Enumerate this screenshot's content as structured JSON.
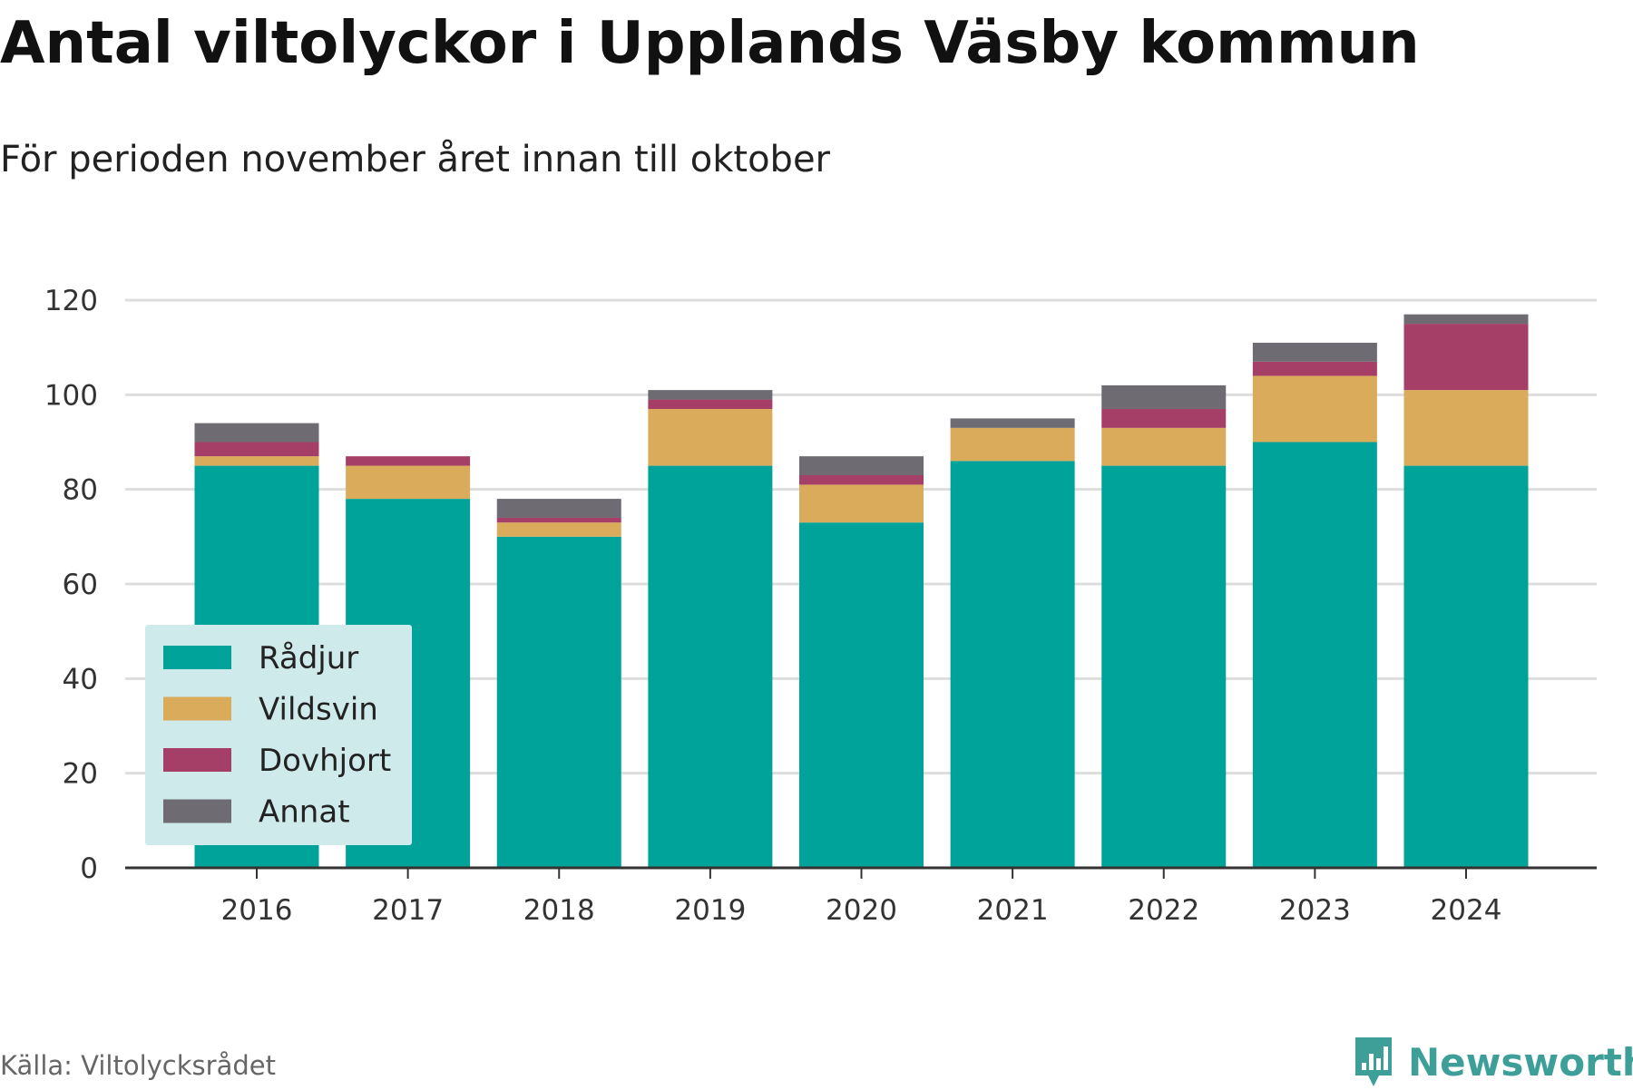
{
  "title": "Antal viltolyckor i Upplands Väsby kommun",
  "subtitle": "För perioden november året innan till oktober",
  "source": "Källa: Viltolycksrådet",
  "brand": {
    "name": "Newsworthy",
    "icon": "newsworthy-logo-icon",
    "color": "#3e9f98"
  },
  "colors": {
    "grid": "#dddddd",
    "axis": "#333333",
    "legend_bg": "#cfeaea"
  },
  "chart_data": {
    "type": "bar",
    "stacked": true,
    "categories": [
      "2016",
      "2017",
      "2018",
      "2019",
      "2020",
      "2021",
      "2022",
      "2023",
      "2024"
    ],
    "series": [
      {
        "name": "Rådjur",
        "color": "#00a39a",
        "values": [
          85,
          78,
          70,
          85,
          73,
          86,
          85,
          90,
          85
        ]
      },
      {
        "name": "Vildsvin",
        "color": "#d9ab5a",
        "values": [
          2,
          7,
          3,
          12,
          8,
          7,
          8,
          14,
          16
        ]
      },
      {
        "name": "Dovhjort",
        "color": "#a53f67",
        "values": [
          3,
          2,
          1,
          2,
          2,
          0,
          4,
          3,
          14
        ]
      },
      {
        "name": "Annat",
        "color": "#6e6c72",
        "values": [
          4,
          0,
          4,
          2,
          4,
          2,
          5,
          4,
          2
        ]
      }
    ],
    "ylim": [
      0,
      120
    ],
    "yticks": [
      "0",
      "20",
      "40",
      "60",
      "80",
      "100",
      "120"
    ],
    "grid": true,
    "legend_position": "bottom-left, overlaid",
    "xlabel": "",
    "ylabel": ""
  }
}
